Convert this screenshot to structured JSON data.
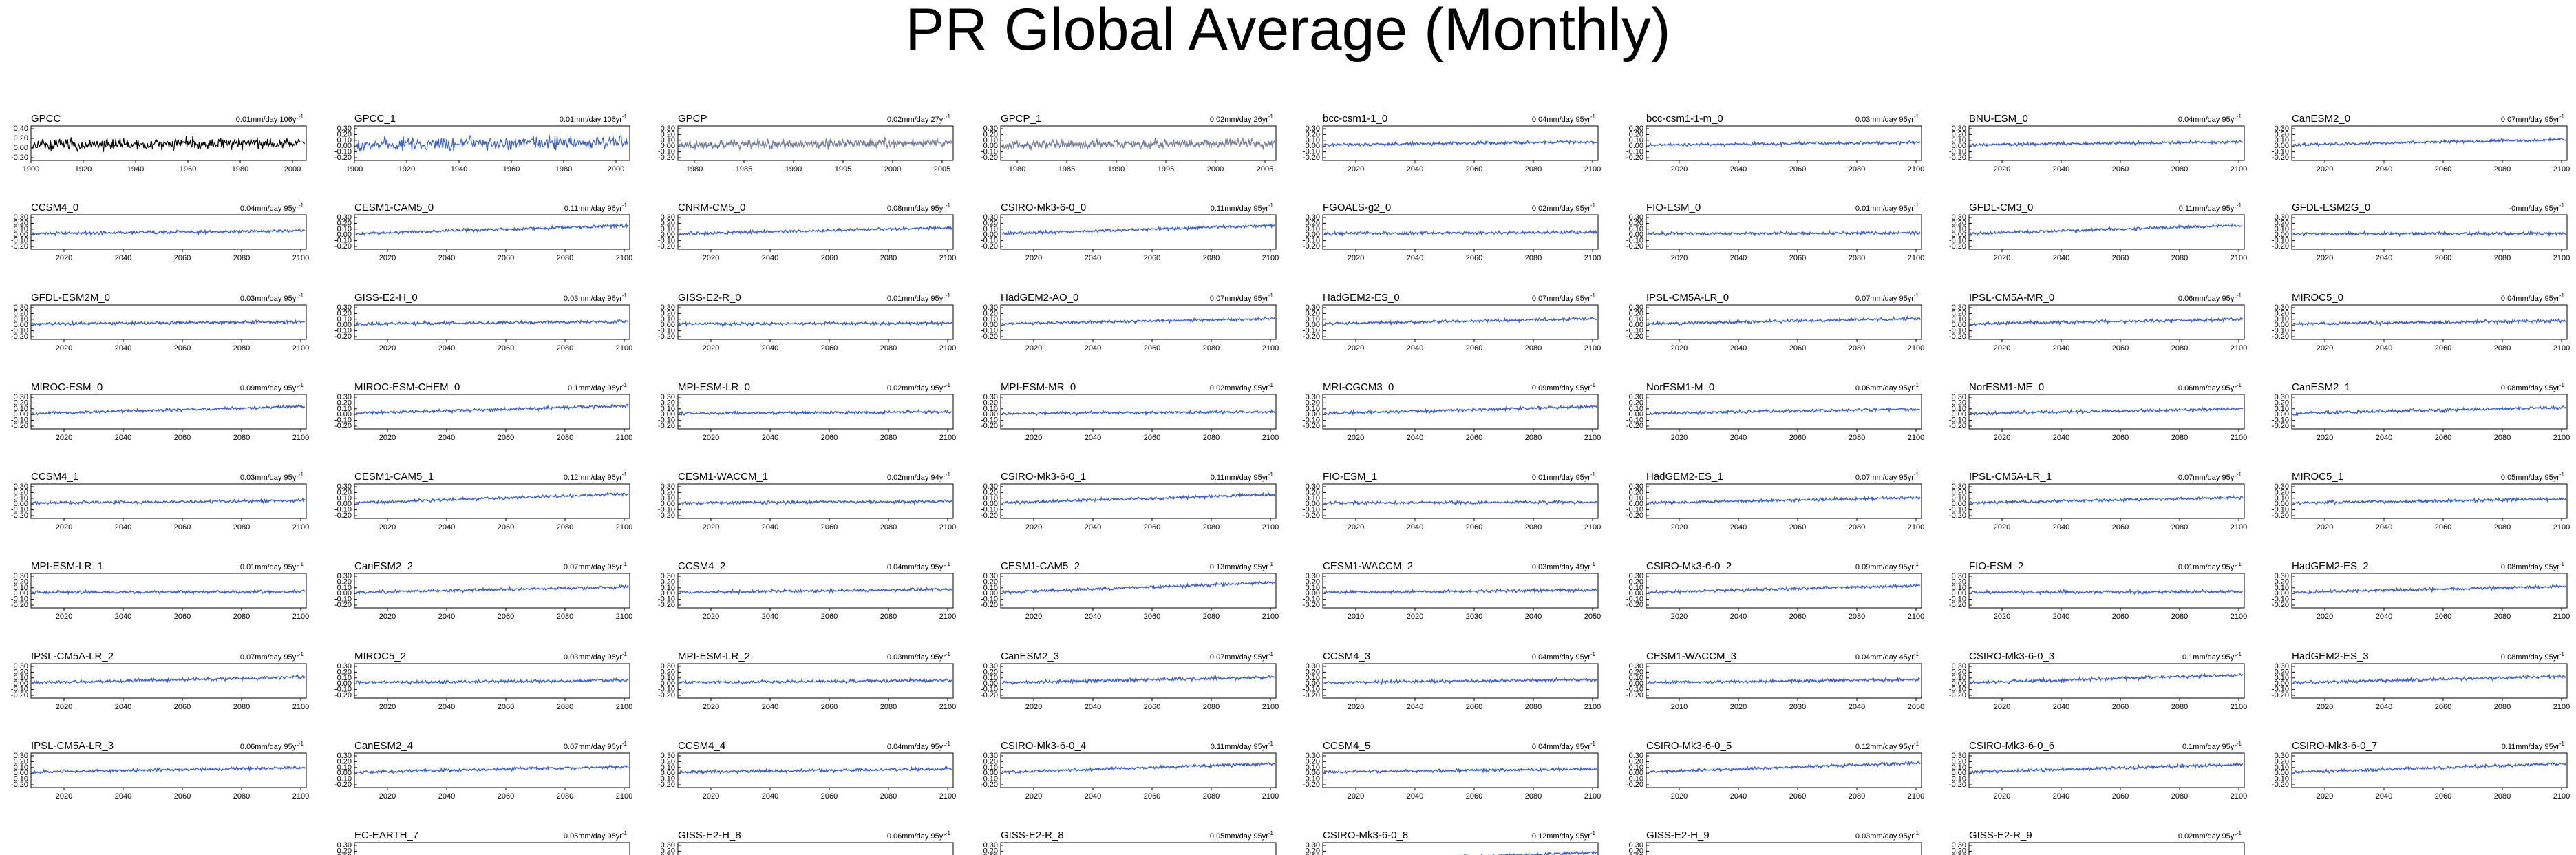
{
  "title": "PR Global Average (Monthly)",
  "colors": {
    "series": "#3a5fcd",
    "obs": "#000000",
    "obs_overlay": "#888888"
  },
  "chart_data": {
    "type": "line",
    "y_ticks_obs": [
      "0.40",
      "0.20",
      "0.00",
      "-0.20"
    ],
    "y_ticks_model": [
      "0.30",
      "0.20",
      "0.10",
      "0.00",
      "-0.10",
      "-0.20"
    ],
    "x_ticks": {
      "gpcc": [
        "1900",
        "1920",
        "1940",
        "1960",
        "1980",
        "2000"
      ],
      "gpcp": [
        "1980",
        "1985",
        "1990",
        "1995",
        "2000",
        "2005"
      ],
      "model": [
        "2020",
        "2040",
        "2060",
        "2080",
        "2100"
      ],
      "short": [
        "2010",
        "2020",
        "2030",
        "2040",
        "2050"
      ]
    },
    "panels": [
      {
        "name": "GPCC",
        "rate": "0.01mm/day 106yr",
        "x": "gpcc",
        "style": "obs",
        "trend": 0.01
      },
      {
        "name": "GPCC_1",
        "rate": "0.01mm/day 105yr",
        "x": "gpcc",
        "style": "noisy",
        "trend": 0.01
      },
      {
        "name": "GPCP",
        "rate": "0.02mm/day 27yr",
        "x": "gpcp",
        "style": "gpcp",
        "trend": 0.02
      },
      {
        "name": "GPCP_1",
        "rate": "0.02mm/day 26yr",
        "x": "gpcp",
        "style": "gpcp",
        "trend": 0.02
      },
      {
        "name": "bcc-csm1-1_0",
        "rate": "0.04mm/day 95yr",
        "x": "model",
        "style": "model",
        "trend": 0.04
      },
      {
        "name": "bcc-csm1-1-m_0",
        "rate": "0.03mm/day 95yr",
        "x": "model",
        "style": "model",
        "trend": 0.03
      },
      {
        "name": "BNU-ESM_0",
        "rate": "0.04mm/day 95yr",
        "x": "model",
        "style": "model",
        "trend": 0.04
      },
      {
        "name": "CanESM2_0",
        "rate": "0.07mm/day 95yr",
        "x": "model",
        "style": "model",
        "trend": 0.07
      },
      {
        "name": "CCSM4_0",
        "rate": "0.04mm/day 95yr",
        "x": "model",
        "style": "model",
        "trend": 0.04
      },
      {
        "name": "CESM1-CAM5_0",
        "rate": "0.11mm/day 95yr",
        "x": "model",
        "style": "model",
        "trend": 0.11
      },
      {
        "name": "CNRM-CM5_0",
        "rate": "0.08mm/day 95yr",
        "x": "model",
        "style": "model",
        "trend": 0.08
      },
      {
        "name": "CSIRO-Mk3-6-0_0",
        "rate": "0.11mm/day 95yr",
        "x": "model",
        "style": "model",
        "trend": 0.11
      },
      {
        "name": "FGOALS-g2_0",
        "rate": "0.02mm/day 95yr",
        "x": "model",
        "style": "model",
        "trend": 0.02
      },
      {
        "name": "FIO-ESM_0",
        "rate": "0.01mm/day 95yr",
        "x": "model",
        "style": "model",
        "trend": 0.01
      },
      {
        "name": "GFDL-CM3_0",
        "rate": "0.11mm/day 95yr",
        "x": "model",
        "style": "model",
        "trend": 0.11
      },
      {
        "name": "GFDL-ESM2G_0",
        "rate": "-0mm/day 95yr",
        "x": "model",
        "style": "model",
        "trend": 0.0
      },
      {
        "name": "GFDL-ESM2M_0",
        "rate": "0.03mm/day 95yr",
        "x": "model",
        "style": "model",
        "trend": 0.03
      },
      {
        "name": "GISS-E2-H_0",
        "rate": "0.03mm/day 95yr",
        "x": "model",
        "style": "model",
        "trend": 0.03
      },
      {
        "name": "GISS-E2-R_0",
        "rate": "0.01mm/day 95yr",
        "x": "model",
        "style": "model",
        "trend": 0.01
      },
      {
        "name": "HadGEM2-AO_0",
        "rate": "0.07mm/day 95yr",
        "x": "model",
        "style": "model",
        "trend": 0.07
      },
      {
        "name": "HadGEM2-ES_0",
        "rate": "0.07mm/day 95yr",
        "x": "model",
        "style": "model",
        "trend": 0.07
      },
      {
        "name": "IPSL-CM5A-LR_0",
        "rate": "0.07mm/day 95yr",
        "x": "model",
        "style": "model",
        "trend": 0.07
      },
      {
        "name": "IPSL-CM5A-MR_0",
        "rate": "0.06mm/day 95yr",
        "x": "model",
        "style": "model",
        "trend": 0.06
      },
      {
        "name": "MIROC5_0",
        "rate": "0.04mm/day 95yr",
        "x": "model",
        "style": "model",
        "trend": 0.04
      },
      {
        "name": "MIROC-ESM_0",
        "rate": "0.09mm/day 95yr",
        "x": "model",
        "style": "model",
        "trend": 0.09
      },
      {
        "name": "MIROC-ESM-CHEM_0",
        "rate": "0.1mm/day 95yr",
        "x": "model",
        "style": "model",
        "trend": 0.1
      },
      {
        "name": "MPI-ESM-LR_0",
        "rate": "0.02mm/day 95yr",
        "x": "model",
        "style": "model",
        "trend": 0.02
      },
      {
        "name": "MPI-ESM-MR_0",
        "rate": "0.02mm/day 95yr",
        "x": "model",
        "style": "model",
        "trend": 0.02
      },
      {
        "name": "MRI-CGCM3_0",
        "rate": "0.09mm/day 95yr",
        "x": "model",
        "style": "model",
        "trend": 0.09
      },
      {
        "name": "NorESM1-M_0",
        "rate": "0.06mm/day 95yr",
        "x": "model",
        "style": "model",
        "trend": 0.06
      },
      {
        "name": "NorESM1-ME_0",
        "rate": "0.06mm/day 95yr",
        "x": "model",
        "style": "model",
        "trend": 0.06
      },
      {
        "name": "CanESM2_1",
        "rate": "0.08mm/day 95yr",
        "x": "model",
        "style": "model",
        "trend": 0.08
      },
      {
        "name": "CCSM4_1",
        "rate": "0.03mm/day 95yr",
        "x": "model",
        "style": "model",
        "trend": 0.03
      },
      {
        "name": "CESM1-CAM5_1",
        "rate": "0.12mm/day 95yr",
        "x": "model",
        "style": "model",
        "trend": 0.12
      },
      {
        "name": "CESM1-WACCM_1",
        "rate": "0.02mm/day 94yr",
        "x": "model",
        "style": "model",
        "trend": 0.02
      },
      {
        "name": "CSIRO-Mk3-6-0_1",
        "rate": "0.11mm/day 95yr",
        "x": "model",
        "style": "model",
        "trend": 0.11
      },
      {
        "name": "FIO-ESM_1",
        "rate": "0.01mm/day 95yr",
        "x": "model",
        "style": "model",
        "trend": 0.01
      },
      {
        "name": "HadGEM2-ES_1",
        "rate": "0.07mm/day 95yr",
        "x": "model",
        "style": "model",
        "trend": 0.07
      },
      {
        "name": "IPSL-CM5A-LR_1",
        "rate": "0.07mm/day 95yr",
        "x": "model",
        "style": "model",
        "trend": 0.07
      },
      {
        "name": "MIROC5_1",
        "rate": "0.05mm/day 95yr",
        "x": "model",
        "style": "model",
        "trend": 0.05
      },
      {
        "name": "MPI-ESM-LR_1",
        "rate": "0.01mm/day 95yr",
        "x": "model",
        "style": "model",
        "trend": 0.01
      },
      {
        "name": "CanESM2_2",
        "rate": "0.07mm/day 95yr",
        "x": "model",
        "style": "model",
        "trend": 0.07
      },
      {
        "name": "CCSM4_2",
        "rate": "0.04mm/day 95yr",
        "x": "model",
        "style": "model",
        "trend": 0.04
      },
      {
        "name": "CESM1-CAM5_2",
        "rate": "0.13mm/day 95yr",
        "x": "model",
        "style": "model",
        "trend": 0.13
      },
      {
        "name": "CESM1-WACCM_2",
        "rate": "0.03mm/day 49yr",
        "x": "short",
        "style": "model",
        "trend": 0.03
      },
      {
        "name": "CSIRO-Mk3-6-0_2",
        "rate": "0.09mm/day 95yr",
        "x": "model",
        "style": "model",
        "trend": 0.09
      },
      {
        "name": "FIO-ESM_2",
        "rate": "0.01mm/day 95yr",
        "x": "model",
        "style": "model",
        "trend": 0.01
      },
      {
        "name": "HadGEM2-ES_2",
        "rate": "0.08mm/day 95yr",
        "x": "model",
        "style": "model",
        "trend": 0.08
      },
      {
        "name": "IPSL-CM5A-LR_2",
        "rate": "0.07mm/day 95yr",
        "x": "model",
        "style": "model",
        "trend": 0.07
      },
      {
        "name": "MIROC5_2",
        "rate": "0.03mm/day 95yr",
        "x": "model",
        "style": "model",
        "trend": 0.03
      },
      {
        "name": "MPI-ESM-LR_2",
        "rate": "0.03mm/day 95yr",
        "x": "model",
        "style": "model",
        "trend": 0.03
      },
      {
        "name": "CanESM2_3",
        "rate": "0.07mm/day 95yr",
        "x": "model",
        "style": "model",
        "trend": 0.07
      },
      {
        "name": "CCSM4_3",
        "rate": "0.04mm/day 95yr",
        "x": "model",
        "style": "model",
        "trend": 0.04
      },
      {
        "name": "CESM1-WACCM_3",
        "rate": "0.04mm/day 45yr",
        "x": "short",
        "style": "model",
        "trend": 0.04
      },
      {
        "name": "CSIRO-Mk3-6-0_3",
        "rate": "0.1mm/day 95yr",
        "x": "model",
        "style": "model",
        "trend": 0.1
      },
      {
        "name": "HadGEM2-ES_3",
        "rate": "0.08mm/day 95yr",
        "x": "model",
        "style": "model",
        "trend": 0.08
      },
      {
        "name": "IPSL-CM5A-LR_3",
        "rate": "0.06mm/day 95yr",
        "x": "model",
        "style": "model",
        "trend": 0.06
      },
      {
        "name": "CanESM2_4",
        "rate": "0.07mm/day 95yr",
        "x": "model",
        "style": "model",
        "trend": 0.07
      },
      {
        "name": "CCSM4_4",
        "rate": "0.04mm/day 95yr",
        "x": "model",
        "style": "model",
        "trend": 0.04
      },
      {
        "name": "CSIRO-Mk3-6-0_4",
        "rate": "0.11mm/day 95yr",
        "x": "model",
        "style": "model",
        "trend": 0.11
      },
      {
        "name": "CCSM4_5",
        "rate": "0.04mm/day 95yr",
        "x": "model",
        "style": "model",
        "trend": 0.04
      },
      {
        "name": "CSIRO-Mk3-6-0_5",
        "rate": "0.12mm/day 95yr",
        "x": "model",
        "style": "model",
        "trend": 0.12
      },
      {
        "name": "CSIRO-Mk3-6-0_6",
        "rate": "0.1mm/day 95yr",
        "x": "model",
        "style": "model",
        "trend": 0.1
      },
      {
        "name": "CSIRO-Mk3-6-0_7",
        "rate": "0.11mm/day 95yr",
        "x": "model",
        "style": "model",
        "trend": 0.11
      },
      {
        "name": "EC-EARTH_7",
        "rate": "0.05mm/day 95yr",
        "x": "model",
        "style": "model",
        "trend": 0.05
      },
      {
        "name": "GISS-E2-H_8",
        "rate": "0.06mm/day 95yr",
        "x": "model",
        "style": "model",
        "trend": 0.06
      },
      {
        "name": "GISS-E2-R_8",
        "rate": "0.05mm/day 95yr",
        "x": "model",
        "style": "model",
        "trend": 0.05
      },
      {
        "name": "CSIRO-Mk3-6-0_8",
        "rate": "0.12mm/day 95yr",
        "x": "model",
        "style": "model",
        "trend": 0.12
      },
      {
        "name": "GISS-E2-H_9",
        "rate": "0.03mm/day 95yr",
        "x": "model",
        "style": "model",
        "trend": 0.03
      },
      {
        "name": "GISS-E2-R_9",
        "rate": "0.02mm/day 95yr",
        "x": "model",
        "style": "model",
        "trend": 0.02
      }
    ]
  }
}
